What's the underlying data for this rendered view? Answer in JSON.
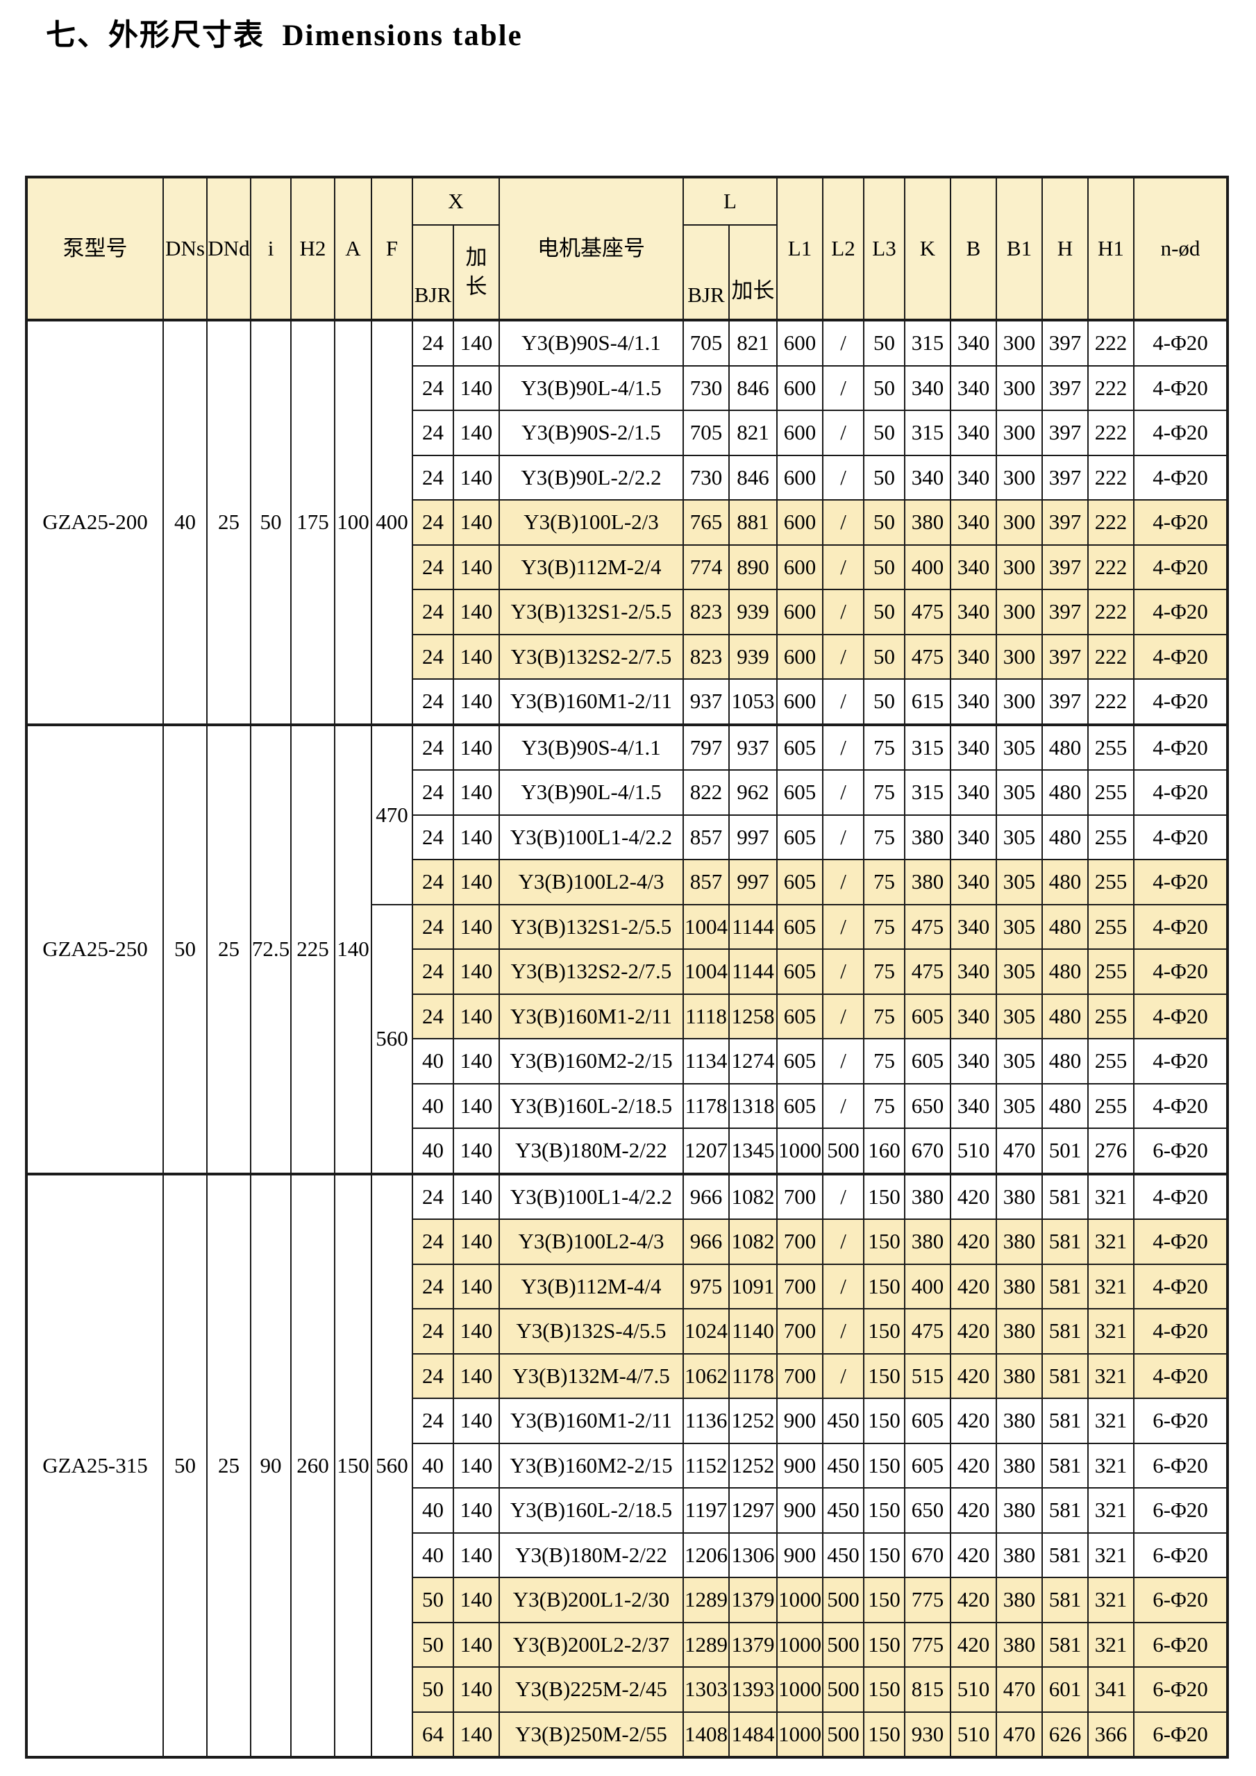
{
  "title": "七、外形尺寸表  Dimensions table",
  "colors": {
    "header_bg": "#FAF0CA",
    "highlight_bg": "#FAECBE",
    "border": "#1A1A1A",
    "page_bg": "#FFFFFF"
  },
  "table": {
    "headers": {
      "pump_model": "泵型号",
      "dns": "DNs",
      "dnd": "DNd",
      "i": "i",
      "h2": "H2",
      "a": "A",
      "f": "F",
      "x": "X",
      "bjr": "BJR",
      "ext": "加长",
      "motor_base": "电机基座号",
      "l": "L",
      "l1": "L1",
      "l2": "L2",
      "l3": "L3",
      "k": "K",
      "b": "B",
      "b1": "B1",
      "h": "H",
      "h1": "H1",
      "nod": "n-ød"
    },
    "groups": [
      {
        "model": "GZA25-200",
        "dns": "40",
        "dnd": "25",
        "i": "50",
        "h2": "175",
        "a": "100",
        "f_spans": [
          {
            "value": "400",
            "rows": 9
          }
        ],
        "rows": [
          {
            "highlight": false,
            "cells": [
              "24",
              "140",
              "Y3(B)90S-4/1.1",
              "705",
              "821",
              "600",
              "/",
              "50",
              "315",
              "340",
              "300",
              "397",
              "222",
              "4-Φ20"
            ]
          },
          {
            "highlight": false,
            "cells": [
              "24",
              "140",
              "Y3(B)90L-4/1.5",
              "730",
              "846",
              "600",
              "/",
              "50",
              "340",
              "340",
              "300",
              "397",
              "222",
              "4-Φ20"
            ]
          },
          {
            "highlight": false,
            "cells": [
              "24",
              "140",
              "Y3(B)90S-2/1.5",
              "705",
              "821",
              "600",
              "/",
              "50",
              "315",
              "340",
              "300",
              "397",
              "222",
              "4-Φ20"
            ]
          },
          {
            "highlight": false,
            "cells": [
              "24",
              "140",
              "Y3(B)90L-2/2.2",
              "730",
              "846",
              "600",
              "/",
              "50",
              "340",
              "340",
              "300",
              "397",
              "222",
              "4-Φ20"
            ]
          },
          {
            "highlight": true,
            "cells": [
              "24",
              "140",
              "Y3(B)100L-2/3",
              "765",
              "881",
              "600",
              "/",
              "50",
              "380",
              "340",
              "300",
              "397",
              "222",
              "4-Φ20"
            ]
          },
          {
            "highlight": true,
            "cells": [
              "24",
              "140",
              "Y3(B)112M-2/4",
              "774",
              "890",
              "600",
              "/",
              "50",
              "400",
              "340",
              "300",
              "397",
              "222",
              "4-Φ20"
            ]
          },
          {
            "highlight": true,
            "cells": [
              "24",
              "140",
              "Y3(B)132S1-2/5.5",
              "823",
              "939",
              "600",
              "/",
              "50",
              "475",
              "340",
              "300",
              "397",
              "222",
              "4-Φ20"
            ]
          },
          {
            "highlight": true,
            "cells": [
              "24",
              "140",
              "Y3(B)132S2-2/7.5",
              "823",
              "939",
              "600",
              "/",
              "50",
              "475",
              "340",
              "300",
              "397",
              "222",
              "4-Φ20"
            ]
          },
          {
            "highlight": false,
            "cells": [
              "24",
              "140",
              "Y3(B)160M1-2/11",
              "937",
              "1053",
              "600",
              "/",
              "50",
              "615",
              "340",
              "300",
              "397",
              "222",
              "4-Φ20"
            ]
          }
        ]
      },
      {
        "model": "GZA25-250",
        "dns": "50",
        "dnd": "25",
        "i": "72.5",
        "h2": "225",
        "a": "140",
        "f_spans": [
          {
            "value": "470",
            "rows": 4
          },
          {
            "value": "560",
            "rows": 6
          }
        ],
        "rows": [
          {
            "highlight": false,
            "cells": [
              "24",
              "140",
              "Y3(B)90S-4/1.1",
              "797",
              "937",
              "605",
              "/",
              "75",
              "315",
              "340",
              "305",
              "480",
              "255",
              "4-Φ20"
            ]
          },
          {
            "highlight": false,
            "cells": [
              "24",
              "140",
              "Y3(B)90L-4/1.5",
              "822",
              "962",
              "605",
              "/",
              "75",
              "315",
              "340",
              "305",
              "480",
              "255",
              "4-Φ20"
            ]
          },
          {
            "highlight": false,
            "cells": [
              "24",
              "140",
              "Y3(B)100L1-4/2.2",
              "857",
              "997",
              "605",
              "/",
              "75",
              "380",
              "340",
              "305",
              "480",
              "255",
              "4-Φ20"
            ]
          },
          {
            "highlight": true,
            "cells": [
              "24",
              "140",
              "Y3(B)100L2-4/3",
              "857",
              "997",
              "605",
              "/",
              "75",
              "380",
              "340",
              "305",
              "480",
              "255",
              "4-Φ20"
            ]
          },
          {
            "highlight": true,
            "cells": [
              "24",
              "140",
              "Y3(B)132S1-2/5.5",
              "1004",
              "1144",
              "605",
              "/",
              "75",
              "475",
              "340",
              "305",
              "480",
              "255",
              "4-Φ20"
            ]
          },
          {
            "highlight": true,
            "cells": [
              "24",
              "140",
              "Y3(B)132S2-2/7.5",
              "1004",
              "1144",
              "605",
              "/",
              "75",
              "475",
              "340",
              "305",
              "480",
              "255",
              "4-Φ20"
            ]
          },
          {
            "highlight": true,
            "cells": [
              "24",
              "140",
              "Y3(B)160M1-2/11",
              "1118",
              "1258",
              "605",
              "/",
              "75",
              "605",
              "340",
              "305",
              "480",
              "255",
              "4-Φ20"
            ]
          },
          {
            "highlight": false,
            "cells": [
              "40",
              "140",
              "Y3(B)160M2-2/15",
              "1134",
              "1274",
              "605",
              "/",
              "75",
              "605",
              "340",
              "305",
              "480",
              "255",
              "4-Φ20"
            ]
          },
          {
            "highlight": false,
            "cells": [
              "40",
              "140",
              "Y3(B)160L-2/18.5",
              "1178",
              "1318",
              "605",
              "/",
              "75",
              "650",
              "340",
              "305",
              "480",
              "255",
              "4-Φ20"
            ]
          },
          {
            "highlight": false,
            "cells": [
              "40",
              "140",
              "Y3(B)180M-2/22",
              "1207",
              "1345",
              "1000",
              "500",
              "160",
              "670",
              "510",
              "470",
              "501",
              "276",
              "6-Φ20"
            ]
          }
        ]
      },
      {
        "model": "GZA25-315",
        "dns": "50",
        "dnd": "25",
        "i": "90",
        "h2": "260",
        "a": "150",
        "f_spans": [
          {
            "value": "560",
            "rows": 13
          }
        ],
        "rows": [
          {
            "highlight": false,
            "cells": [
              "24",
              "140",
              "Y3(B)100L1-4/2.2",
              "966",
              "1082",
              "700",
              "/",
              "150",
              "380",
              "420",
              "380",
              "581",
              "321",
              "4-Φ20"
            ]
          },
          {
            "highlight": true,
            "cells": [
              "24",
              "140",
              "Y3(B)100L2-4/3",
              "966",
              "1082",
              "700",
              "/",
              "150",
              "380",
              "420",
              "380",
              "581",
              "321",
              "4-Φ20"
            ]
          },
          {
            "highlight": true,
            "cells": [
              "24",
              "140",
              "Y3(B)112M-4/4",
              "975",
              "1091",
              "700",
              "/",
              "150",
              "400",
              "420",
              "380",
              "581",
              "321",
              "4-Φ20"
            ]
          },
          {
            "highlight": true,
            "cells": [
              "24",
              "140",
              "Y3(B)132S-4/5.5",
              "1024",
              "1140",
              "700",
              "/",
              "150",
              "475",
              "420",
              "380",
              "581",
              "321",
              "4-Φ20"
            ]
          },
          {
            "highlight": true,
            "cells": [
              "24",
              "140",
              "Y3(B)132M-4/7.5",
              "1062",
              "1178",
              "700",
              "/",
              "150",
              "515",
              "420",
              "380",
              "581",
              "321",
              "4-Φ20"
            ]
          },
          {
            "highlight": false,
            "cells": [
              "24",
              "140",
              "Y3(B)160M1-2/11",
              "1136",
              "1252",
              "900",
              "450",
              "150",
              "605",
              "420",
              "380",
              "581",
              "321",
              "6-Φ20"
            ]
          },
          {
            "highlight": false,
            "cells": [
              "40",
              "140",
              "Y3(B)160M2-2/15",
              "1152",
              "1252",
              "900",
              "450",
              "150",
              "605",
              "420",
              "380",
              "581",
              "321",
              "6-Φ20"
            ]
          },
          {
            "highlight": false,
            "cells": [
              "40",
              "140",
              "Y3(B)160L-2/18.5",
              "1197",
              "1297",
              "900",
              "450",
              "150",
              "650",
              "420",
              "380",
              "581",
              "321",
              "6-Φ20"
            ]
          },
          {
            "highlight": false,
            "cells": [
              "40",
              "140",
              "Y3(B)180M-2/22",
              "1206",
              "1306",
              "900",
              "450",
              "150",
              "670",
              "420",
              "380",
              "581",
              "321",
              "6-Φ20"
            ]
          },
          {
            "highlight": true,
            "cells": [
              "50",
              "140",
              "Y3(B)200L1-2/30",
              "1289",
              "1379",
              "1000",
              "500",
              "150",
              "775",
              "420",
              "380",
              "581",
              "321",
              "6-Φ20"
            ]
          },
          {
            "highlight": true,
            "cells": [
              "50",
              "140",
              "Y3(B)200L2-2/37",
              "1289",
              "1379",
              "1000",
              "500",
              "150",
              "775",
              "420",
              "380",
              "581",
              "321",
              "6-Φ20"
            ]
          },
          {
            "highlight": true,
            "cells": [
              "50",
              "140",
              "Y3(B)225M-2/45",
              "1303",
              "1393",
              "1000",
              "500",
              "150",
              "815",
              "510",
              "470",
              "601",
              "341",
              "6-Φ20"
            ]
          },
          {
            "highlight": true,
            "cells": [
              "64",
              "140",
              "Y3(B)250M-2/55",
              "1408",
              "1484",
              "1000",
              "500",
              "150",
              "930",
              "510",
              "470",
              "626",
              "366",
              "6-Φ20"
            ]
          }
        ]
      }
    ]
  }
}
